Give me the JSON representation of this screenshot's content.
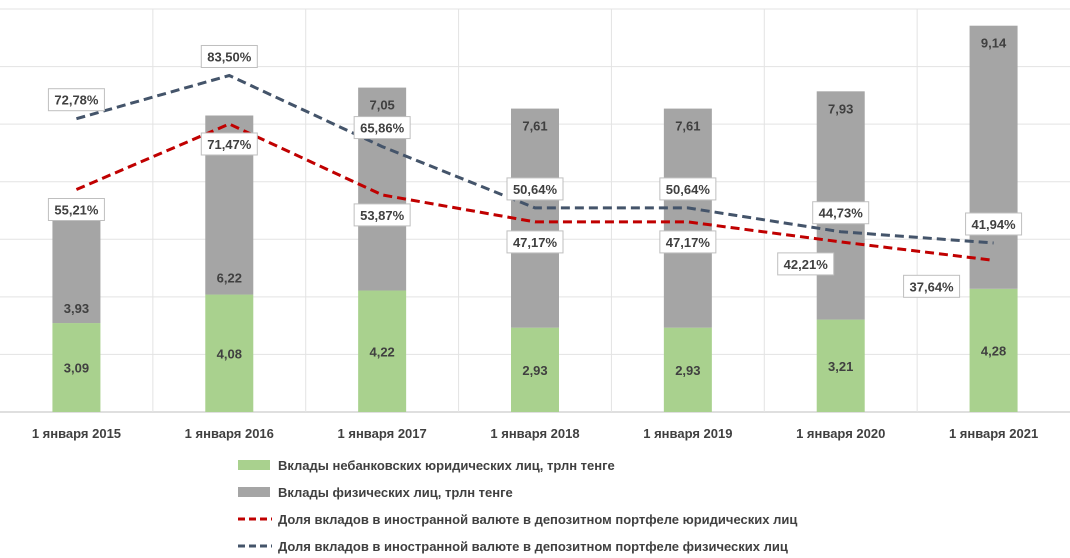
{
  "chart_data": {
    "type": "bar",
    "stacked": true,
    "categories": [
      "1 января 2015",
      "1 января 2016",
      "1 января 2017",
      "1 января 2018",
      "1 января 2019",
      "1 января 2020",
      "1 января 2021"
    ],
    "series": [
      {
        "name": "Вклады небанковских юридических лиц, трлн тенге",
        "kind": "bar",
        "color": "#a9d18e",
        "values": [
          3.09,
          4.08,
          4.22,
          2.93,
          2.93,
          3.21,
          4.28
        ],
        "labels": [
          "3,09",
          "4,08",
          "4,22",
          "2,93",
          "2,93",
          "3,21",
          "4,28"
        ]
      },
      {
        "name": "Вклады физических лиц, трлн тенге",
        "kind": "bar",
        "color": "#a5a5a5",
        "values": [
          3.93,
          6.22,
          7.05,
          7.61,
          7.61,
          7.93,
          9.14
        ],
        "labels": [
          "3,93",
          "6,22",
          "7,05",
          "7,61",
          "7,61",
          "7,93",
          "9,14"
        ]
      },
      {
        "name": "Доля вкладов в иностранной валюте в депозитном портфеле юридических лиц",
        "kind": "line",
        "color": "#c00000",
        "dash": "dashed",
        "values": [
          55.21,
          71.47,
          53.87,
          47.17,
          47.17,
          42.21,
          37.64
        ],
        "labels": [
          "55,21%",
          "71,47%",
          "53,87%",
          "47,17%",
          "47,17%",
          "42,21%",
          "37,64%"
        ]
      },
      {
        "name": "Доля вкладов в иностранной валюте в депозитном портфеле физических лиц",
        "kind": "line",
        "color": "#44546a",
        "dash": "dashed",
        "values": [
          72.78,
          83.5,
          65.86,
          50.64,
          50.64,
          44.73,
          41.94
        ],
        "labels": [
          "72,78%",
          "83,50%",
          "65,86%",
          "50,64%",
          "50,64%",
          "44,73%",
          "41,94%"
        ]
      }
    ],
    "y_bar_range": [
      0,
      14
    ],
    "y_line_range": [
      0,
      100
    ],
    "grid": true,
    "legend_position": "bottom"
  }
}
